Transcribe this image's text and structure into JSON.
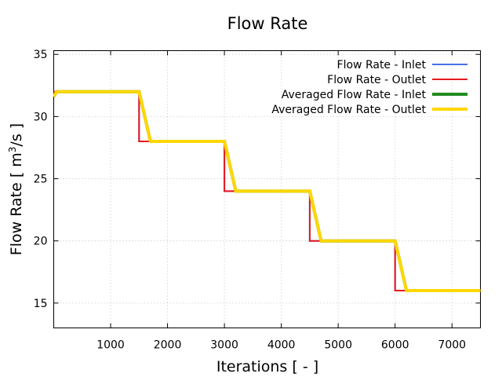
{
  "chart_data": {
    "type": "line",
    "title": "Flow Rate",
    "xlabel": "Iterations [ - ]",
    "ylabel_prefix": "Flow Rate [ m",
    "ylabel_sup": "3",
    "ylabel_suffix": "/s ]",
    "xlim": [
      0,
      7500
    ],
    "ylim": [
      13,
      35.3
    ],
    "xticks": [
      1000,
      2000,
      3000,
      4000,
      5000,
      6000,
      7000
    ],
    "yticks": [
      15,
      20,
      25,
      30,
      35
    ],
    "grid": true,
    "legend_position": "top-right",
    "series": [
      {
        "name": "Flow Rate - Inlet",
        "color": "#4a6fe8",
        "x": [
          0,
          1500,
          1500,
          3000,
          3000,
          4500,
          4500,
          6000,
          6000,
          7500
        ],
        "y": [
          32,
          32,
          28,
          28,
          24,
          24,
          20,
          20,
          16,
          16
        ]
      },
      {
        "name": "Flow Rate - Outlet",
        "color": "#e8191d",
        "x": [
          0,
          1500,
          1500,
          3000,
          3000,
          4500,
          4500,
          6000,
          6000,
          7500
        ],
        "y": [
          32,
          32,
          28,
          28,
          24,
          24,
          20,
          20,
          16,
          16
        ]
      },
      {
        "name": "Averaged Flow Rate - Inlet",
        "color": "#228b22",
        "x": [
          0,
          50,
          1500,
          1700,
          3000,
          3200,
          4500,
          4700,
          6000,
          6200,
          7500
        ],
        "y": [
          31.6,
          32,
          32,
          28,
          28,
          24,
          24,
          20,
          20,
          16,
          16
        ]
      },
      {
        "name": "Averaged Flow Rate - Outlet",
        "color": "#ffd700",
        "x": [
          0,
          50,
          1500,
          1700,
          3000,
          3200,
          4500,
          4700,
          6000,
          6200,
          7500
        ],
        "y": [
          31.6,
          32,
          32,
          28,
          28,
          24,
          24,
          20,
          20,
          16,
          16
        ]
      }
    ]
  }
}
